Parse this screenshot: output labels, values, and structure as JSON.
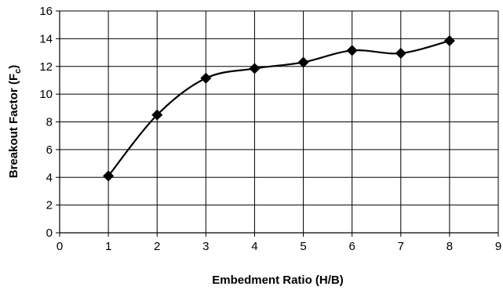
{
  "chart_data": {
    "type": "line",
    "title": "",
    "xlabel": "Embedment Ratio (H/B)",
    "ylabel_main": "Breakout Factor (F",
    "ylabel_sub": "c",
    "ylabel_close": ")",
    "xlim": [
      0,
      9
    ],
    "ylim": [
      0,
      16
    ],
    "x_ticks": [
      "0",
      "1",
      "2",
      "3",
      "4",
      "5",
      "6",
      "7",
      "8",
      "9"
    ],
    "y_ticks": [
      "0",
      "2",
      "4",
      "6",
      "8",
      "10",
      "12",
      "14",
      "16"
    ],
    "grid": true,
    "smooth": true,
    "marker": "diamond",
    "series": [
      {
        "color": "#000000",
        "x": [
          1,
          2,
          3,
          4,
          5,
          6,
          7,
          8
        ],
        "y": [
          4.1,
          8.5,
          11.15,
          11.85,
          12.3,
          13.15,
          12.95,
          13.85
        ]
      }
    ]
  }
}
